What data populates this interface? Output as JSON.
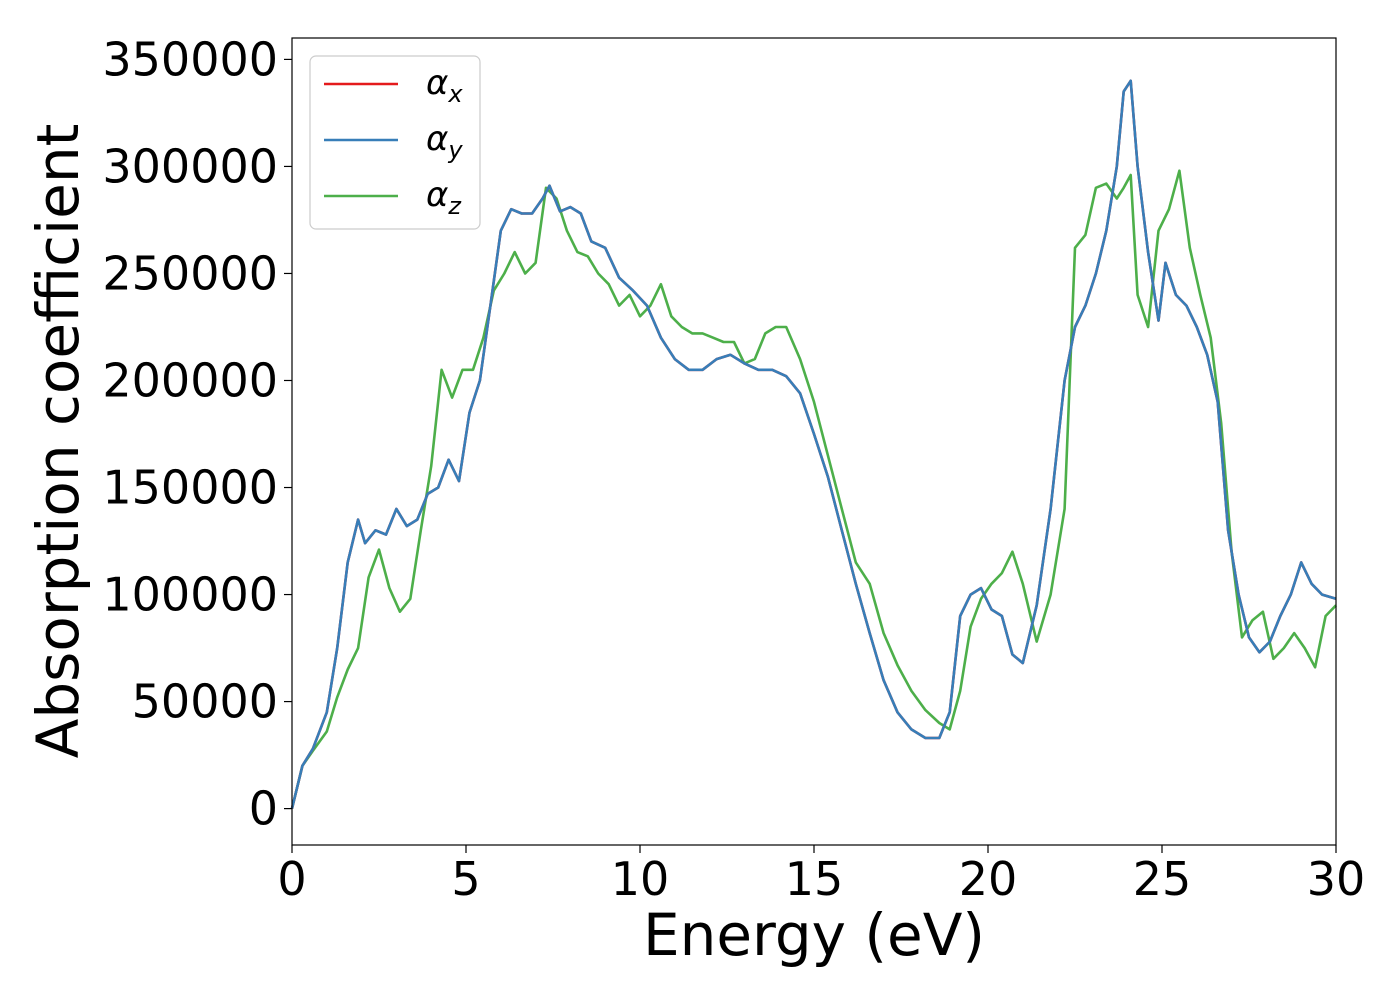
{
  "chart_data": {
    "type": "line",
    "title": "",
    "xlabel": "Energy (eV)",
    "ylabel": "Absorption coefficient",
    "xlim": [
      0,
      30
    ],
    "ylim": [
      -17000,
      360000
    ],
    "xticks": [
      0,
      5,
      10,
      15,
      20,
      25,
      30
    ],
    "xtick_labels": [
      "0",
      "5",
      "10",
      "15",
      "20",
      "25",
      "30"
    ],
    "yticks": [
      0,
      50000,
      100000,
      150000,
      200000,
      250000,
      300000,
      350000
    ],
    "ytick_labels": [
      "0",
      "50000",
      "100000",
      "150000",
      "200000",
      "250000",
      "300000",
      "350000"
    ],
    "grid": false,
    "legend_position": "top-left",
    "series": [
      {
        "name": "α",
        "subscript": "x",
        "color": "#e41a1c",
        "x": [
          0,
          0.3,
          0.6,
          1.0,
          1.3,
          1.6,
          1.9,
          2.1,
          2.4,
          2.7,
          3.0,
          3.3,
          3.6,
          3.9,
          4.2,
          4.5,
          4.8,
          5.1,
          5.4,
          5.7,
          6.0,
          6.3,
          6.6,
          6.9,
          7.2,
          7.4,
          7.7,
          8.0,
          8.3,
          8.6,
          9.0,
          9.4,
          9.8,
          10.2,
          10.6,
          11.0,
          11.4,
          11.8,
          12.2,
          12.6,
          13.0,
          13.4,
          13.8,
          14.2,
          14.6,
          15.0,
          15.4,
          15.8,
          16.2,
          16.6,
          17.0,
          17.4,
          17.8,
          18.2,
          18.6,
          18.9,
          19.2,
          19.5,
          19.8,
          20.1,
          20.4,
          20.7,
          21.0,
          21.4,
          21.8,
          22.2,
          22.5,
          22.8,
          23.1,
          23.4,
          23.7,
          23.9,
          24.1,
          24.3,
          24.6,
          24.9,
          25.1,
          25.4,
          25.7,
          26.0,
          26.3,
          26.6,
          26.9,
          27.2,
          27.5,
          27.8,
          28.1,
          28.4,
          28.7,
          29.0,
          29.3,
          29.6,
          30.0
        ],
        "values": [
          0,
          20000,
          28000,
          45000,
          75000,
          115000,
          135000,
          124000,
          130000,
          128000,
          140000,
          132000,
          135000,
          147000,
          150000,
          163000,
          153000,
          185000,
          200000,
          235000,
          270000,
          280000,
          278000,
          278000,
          285000,
          291000,
          279000,
          281000,
          278000,
          265000,
          262000,
          248000,
          242000,
          235000,
          220000,
          210000,
          205000,
          205000,
          210000,
          212000,
          208000,
          205000,
          205000,
          202000,
          194000,
          175000,
          155000,
          130000,
          105000,
          82000,
          60000,
          45000,
          37000,
          33000,
          33000,
          45000,
          90000,
          100000,
          103000,
          93000,
          90000,
          72000,
          68000,
          95000,
          140000,
          200000,
          225000,
          235000,
          250000,
          270000,
          300000,
          335000,
          340000,
          300000,
          260000,
          228000,
          255000,
          240000,
          235000,
          225000,
          212000,
          190000,
          130000,
          100000,
          80000,
          73000,
          78000,
          90000,
          100000,
          115000,
          105000,
          100000,
          98000
        ]
      },
      {
        "name": "α",
        "subscript": "y",
        "color": "#377eb8",
        "x": [
          0,
          0.3,
          0.6,
          1.0,
          1.3,
          1.6,
          1.9,
          2.1,
          2.4,
          2.7,
          3.0,
          3.3,
          3.6,
          3.9,
          4.2,
          4.5,
          4.8,
          5.1,
          5.4,
          5.7,
          6.0,
          6.3,
          6.6,
          6.9,
          7.2,
          7.4,
          7.7,
          8.0,
          8.3,
          8.6,
          9.0,
          9.4,
          9.8,
          10.2,
          10.6,
          11.0,
          11.4,
          11.8,
          12.2,
          12.6,
          13.0,
          13.4,
          13.8,
          14.2,
          14.6,
          15.0,
          15.4,
          15.8,
          16.2,
          16.6,
          17.0,
          17.4,
          17.8,
          18.2,
          18.6,
          18.9,
          19.2,
          19.5,
          19.8,
          20.1,
          20.4,
          20.7,
          21.0,
          21.4,
          21.8,
          22.2,
          22.5,
          22.8,
          23.1,
          23.4,
          23.7,
          23.9,
          24.1,
          24.3,
          24.6,
          24.9,
          25.1,
          25.4,
          25.7,
          26.0,
          26.3,
          26.6,
          26.9,
          27.2,
          27.5,
          27.8,
          28.1,
          28.4,
          28.7,
          29.0,
          29.3,
          29.6,
          30.0
        ],
        "values": [
          0,
          20000,
          28000,
          45000,
          75000,
          115000,
          135000,
          124000,
          130000,
          128000,
          140000,
          132000,
          135000,
          147000,
          150000,
          163000,
          153000,
          185000,
          200000,
          235000,
          270000,
          280000,
          278000,
          278000,
          285000,
          291000,
          279000,
          281000,
          278000,
          265000,
          262000,
          248000,
          242000,
          235000,
          220000,
          210000,
          205000,
          205000,
          210000,
          212000,
          208000,
          205000,
          205000,
          202000,
          194000,
          175000,
          155000,
          130000,
          105000,
          82000,
          60000,
          45000,
          37000,
          33000,
          33000,
          45000,
          90000,
          100000,
          103000,
          93000,
          90000,
          72000,
          68000,
          95000,
          140000,
          200000,
          225000,
          235000,
          250000,
          270000,
          300000,
          335000,
          340000,
          300000,
          260000,
          228000,
          255000,
          240000,
          235000,
          225000,
          212000,
          190000,
          130000,
          100000,
          80000,
          73000,
          78000,
          90000,
          100000,
          115000,
          105000,
          100000,
          98000
        ]
      },
      {
        "name": "α",
        "subscript": "z",
        "color": "#4daf4a",
        "x": [
          0,
          0.3,
          0.6,
          1.0,
          1.3,
          1.6,
          1.9,
          2.2,
          2.5,
          2.8,
          3.1,
          3.4,
          3.7,
          4.0,
          4.3,
          4.6,
          4.9,
          5.2,
          5.5,
          5.8,
          6.1,
          6.4,
          6.7,
          7.0,
          7.3,
          7.6,
          7.9,
          8.2,
          8.5,
          8.8,
          9.1,
          9.4,
          9.7,
          10.0,
          10.3,
          10.6,
          10.9,
          11.2,
          11.5,
          11.8,
          12.1,
          12.4,
          12.7,
          13.0,
          13.3,
          13.6,
          13.9,
          14.2,
          14.6,
          15.0,
          15.4,
          15.8,
          16.2,
          16.6,
          17.0,
          17.4,
          17.8,
          18.2,
          18.6,
          18.9,
          19.2,
          19.5,
          19.8,
          20.1,
          20.4,
          20.7,
          21.0,
          21.4,
          21.8,
          22.2,
          22.5,
          22.8,
          23.1,
          23.4,
          23.7,
          23.9,
          24.1,
          24.3,
          24.6,
          24.9,
          25.2,
          25.5,
          25.8,
          26.1,
          26.4,
          26.7,
          27.0,
          27.3,
          27.6,
          27.9,
          28.2,
          28.5,
          28.8,
          29.1,
          29.4,
          29.7,
          30.0
        ],
        "values": [
          0,
          20000,
          27000,
          36000,
          52000,
          65000,
          75000,
          108000,
          121000,
          103000,
          92000,
          98000,
          130000,
          160000,
          205000,
          192000,
          205000,
          205000,
          220000,
          242000,
          250000,
          260000,
          250000,
          255000,
          290000,
          285000,
          270000,
          260000,
          258000,
          250000,
          245000,
          235000,
          240000,
          230000,
          235000,
          245000,
          230000,
          225000,
          222000,
          222000,
          220000,
          218000,
          218000,
          208000,
          210000,
          222000,
          225000,
          225000,
          210000,
          190000,
          165000,
          140000,
          115000,
          105000,
          82000,
          67000,
          55000,
          46000,
          40000,
          37000,
          55000,
          85000,
          98000,
          105000,
          110000,
          120000,
          105000,
          78000,
          100000,
          140000,
          262000,
          268000,
          290000,
          292000,
          285000,
          290000,
          296000,
          240000,
          225000,
          270000,
          280000,
          298000,
          262000,
          240000,
          220000,
          180000,
          120000,
          80000,
          88000,
          92000,
          70000,
          75000,
          82000,
          75000,
          66000,
          90000,
          95000
        ]
      }
    ]
  }
}
